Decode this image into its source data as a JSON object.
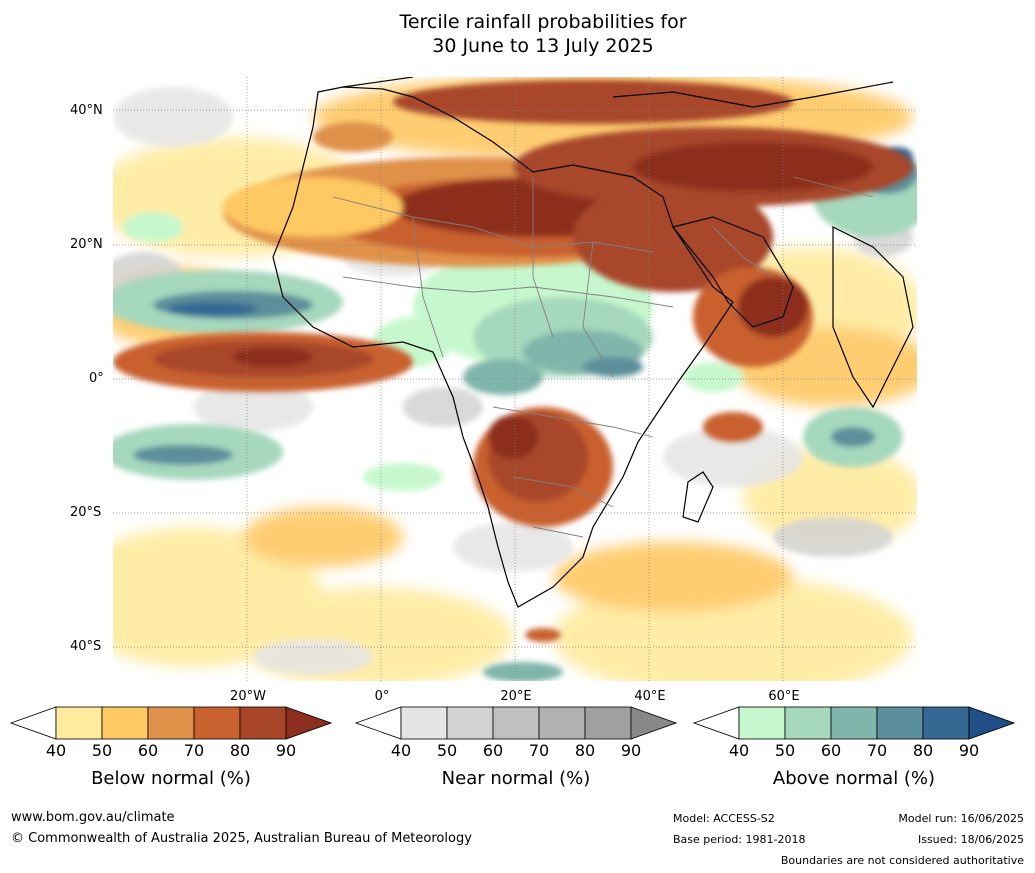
{
  "title": {
    "line1": "Tercile rainfall probabilities for",
    "line2": "30 June to 13 July 2025"
  },
  "map": {
    "lat_labels": [
      "40°N",
      "20°N",
      "0°",
      "20°S",
      "40°S"
    ],
    "lon_labels": [
      "20°W",
      "0°",
      "20°E",
      "40°E",
      "60°E"
    ],
    "colors": {
      "ocean_base": "#ffffff",
      "coastline": "#000000",
      "borders": "#808080",
      "gridline": "#808080"
    }
  },
  "legends": [
    {
      "name": "Below normal (%)",
      "ticks": [
        "40",
        "50",
        "60",
        "70",
        "80",
        "90"
      ],
      "colors": [
        "#ffffff",
        "#ffeb9e",
        "#fec862",
        "#e0914a",
        "#c9612f",
        "#a8462a",
        "#8d2f1f"
      ]
    },
    {
      "name": "Near normal (%)",
      "ticks": [
        "40",
        "50",
        "60",
        "70",
        "80",
        "90"
      ],
      "colors": [
        "#ffffff",
        "#e5e5e5",
        "#d3d3d3",
        "#c0c0c0",
        "#b1b1b1",
        "#a0a0a0",
        "#888888"
      ]
    },
    {
      "name": "Above normal (%)",
      "ticks": [
        "40",
        "50",
        "60",
        "70",
        "80",
        "90"
      ],
      "colors": [
        "#ffffff",
        "#c7f8cd",
        "#a6d8be",
        "#80b5ab",
        "#5b8f9b",
        "#356994",
        "#1f4f86"
      ]
    }
  ],
  "footer": {
    "website": "www.bom.gov.au/climate",
    "copyright": "© Commonwealth of Australia 2025, Australian Bureau of Meteorology",
    "model": "Model: ACCESS-S2",
    "base_period": "Base period: 1981-2018",
    "model_run": "Model run: 16/06/2025",
    "issued": "Issued: 18/06/2025",
    "disclaimer": "Boundaries are not considered authoritative"
  }
}
